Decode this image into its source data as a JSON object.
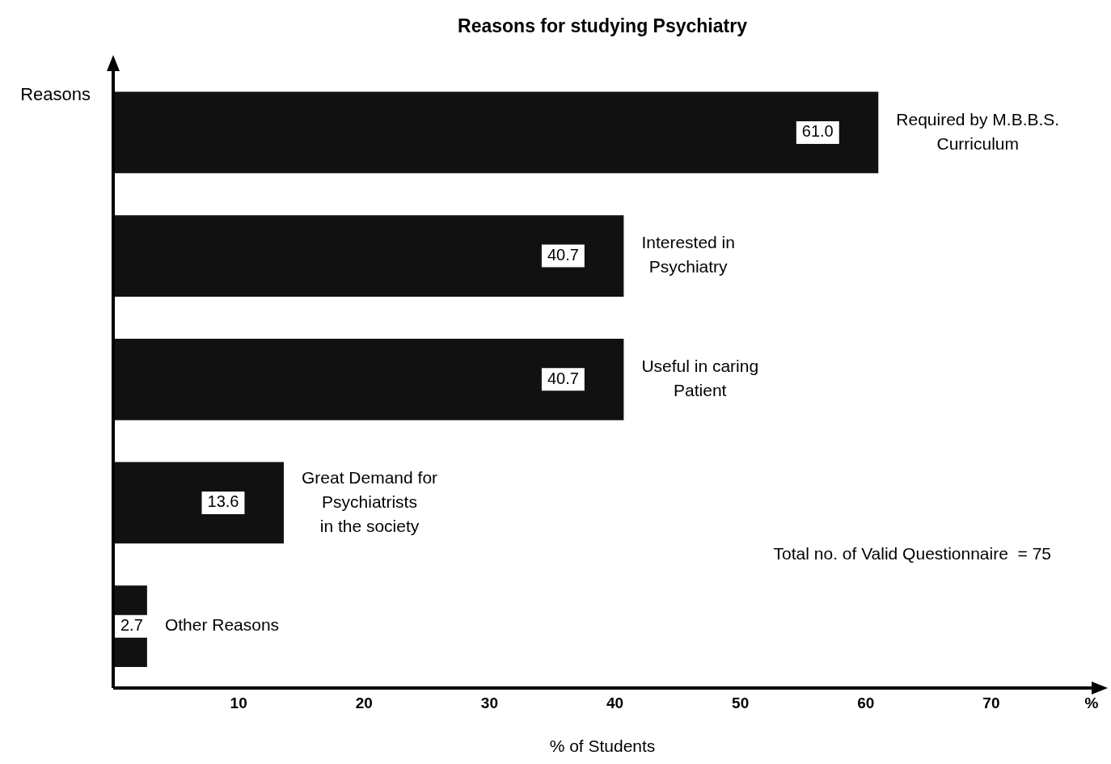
{
  "chart_data": {
    "type": "bar",
    "orientation": "horizontal",
    "title": "Reasons for studying Psychiatry",
    "xlabel": "% of Students",
    "ylabel": "Reasons",
    "categories": [
      "Required by M.B.B.S.\nCurriculum",
      "Interested in\nPsychiatry",
      "Useful in caring\nPatient",
      "Great Demand for\nPsychiatrists\nin the society",
      "Other Reasons"
    ],
    "values": [
      61.0,
      40.7,
      40.7,
      13.6,
      2.7
    ],
    "value_labels": [
      "61.0",
      "40.7",
      "40.7",
      "13.6",
      "2.7"
    ],
    "color": "#111111",
    "xlim": [
      0,
      78
    ],
    "xticks": [
      10,
      20,
      30,
      40,
      50,
      60,
      70,
      {
        "value": 78,
        "label": "%"
      }
    ],
    "grid": false,
    "legend": false,
    "annotations": [
      "Total no. of Valid Questionnaire  = 75"
    ]
  }
}
